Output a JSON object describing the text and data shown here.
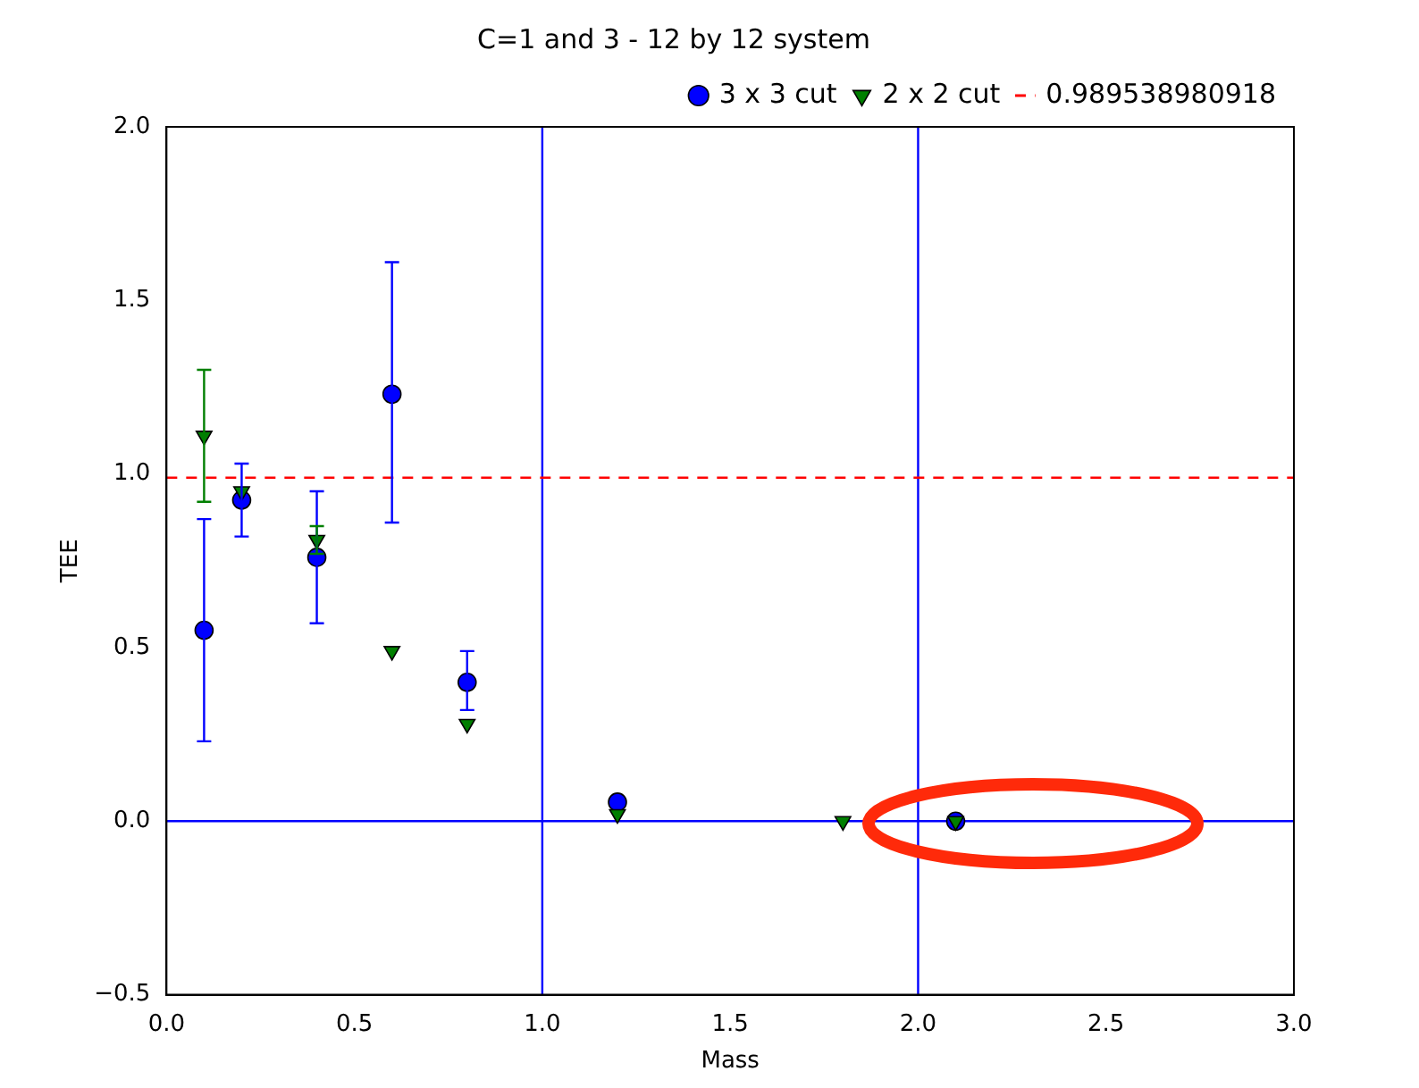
{
  "chart_data": {
    "type": "scatter",
    "title": "C=1 and 3 - 12 by 12 system",
    "xlabel": "Mass",
    "ylabel": "TEE",
    "x": [
      0.1,
      0.2,
      0.4,
      0.6,
      0.8,
      1.2,
      1.8,
      2.1
    ],
    "series": [
      {
        "name": "3 x 3 cut",
        "color": "#0000ff",
        "marker": "circle",
        "values": [
          0.55,
          0.925,
          0.76,
          1.23,
          0.4,
          0.055,
          null,
          0.0
        ],
        "errors": [
          [
            0.23,
            0.87
          ],
          [
            0.82,
            1.03
          ],
          [
            0.57,
            0.95
          ],
          [
            0.86,
            1.61
          ],
          [
            0.32,
            0.49
          ],
          null,
          null,
          null
        ]
      },
      {
        "name": "2 x 2 cut",
        "color": "#007f00",
        "marker": "triangle",
        "values": [
          1.11,
          0.95,
          0.81,
          0.49,
          0.28,
          0.02,
          0.0,
          0.0
        ],
        "errors": [
          [
            0.92,
            1.3
          ],
          null,
          [
            0.77,
            0.85
          ],
          null,
          null,
          null,
          null,
          null
        ]
      }
    ],
    "ref_lines": [
      {
        "axis": "y",
        "value": 0.989538980918,
        "label": "0.989538980918",
        "color": "#ff0000",
        "line_style": "dashed"
      },
      {
        "axis": "x",
        "value": 1.0,
        "color": "#0000ff",
        "line_style": "solid"
      },
      {
        "axis": "x",
        "value": 2.0,
        "color": "#0000ff",
        "line_style": "solid"
      },
      {
        "axis": "y",
        "value": 0.0,
        "color": "#0000ff",
        "line_style": "solid"
      }
    ],
    "xlim": [
      0,
      3
    ],
    "xticks": [
      {
        "value": 0,
        "label": "0.0"
      },
      {
        "value": 0.5,
        "label": "0.5"
      },
      {
        "value": 1,
        "label": "1.0"
      },
      {
        "value": 1.5,
        "label": "1.5"
      },
      {
        "value": 2,
        "label": "2.0"
      },
      {
        "value": 2.5,
        "label": "2.5"
      },
      {
        "value": 3,
        "label": "3.0"
      }
    ],
    "ylim": [
      -0.5,
      2
    ],
    "yticks": [
      {
        "value": -0.5,
        "label": "−0.5"
      },
      {
        "value": 0,
        "label": "0.0"
      },
      {
        "value": 0.5,
        "label": "0.5"
      },
      {
        "value": 1,
        "label": "1.0"
      },
      {
        "value": 1.5,
        "label": "1.5"
      },
      {
        "value": 2,
        "label": "2.0"
      }
    ],
    "grid": false,
    "legend": "top right"
  }
}
